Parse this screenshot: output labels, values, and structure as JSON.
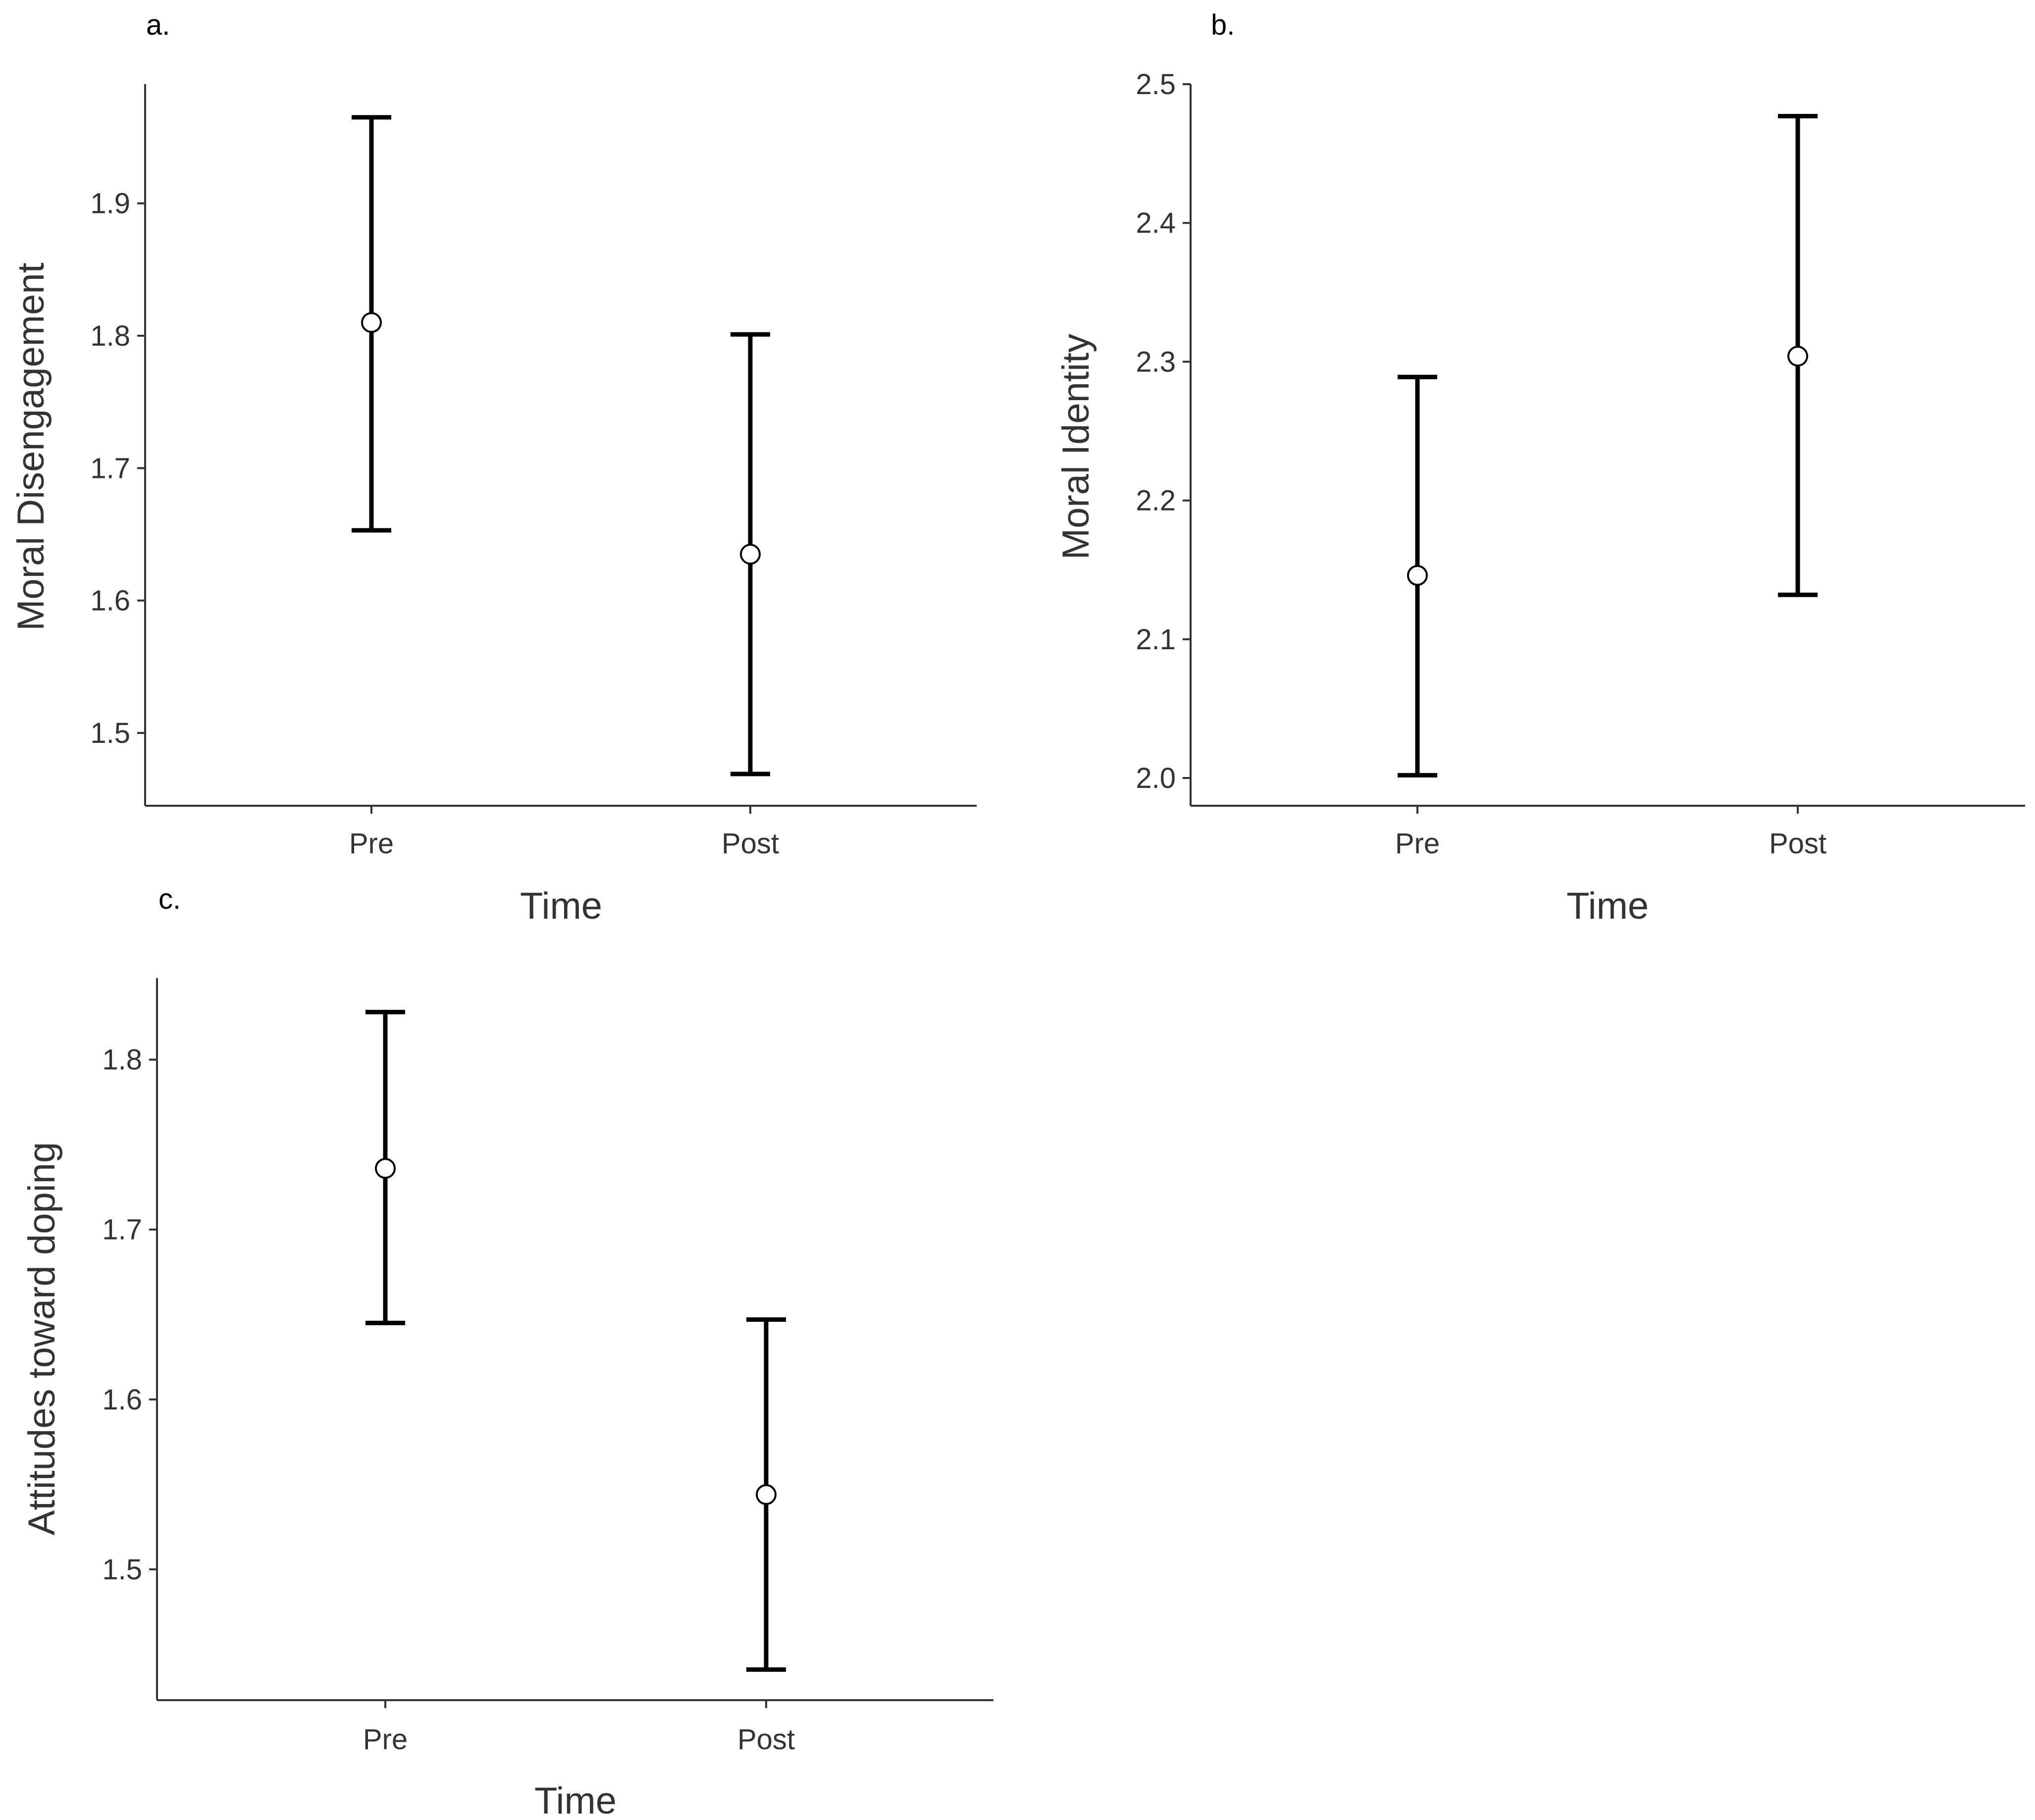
{
  "chart_data": [
    {
      "panel": "a.",
      "type": "scatter",
      "xlabel": "Time",
      "ylabel": "Moral Disengagement",
      "categories": [
        "Pre",
        "Post"
      ],
      "values": [
        1.81,
        1.635
      ],
      "ci_lower": [
        1.653,
        1.469
      ],
      "ci_upper": [
        1.965,
        1.801
      ],
      "ylim": [
        1.445,
        1.99
      ],
      "yticks": [
        1.5,
        1.6,
        1.7,
        1.8,
        1.9
      ],
      "ytick_labels": [
        "1.5",
        "1.6",
        "1.7",
        "1.8",
        "1.9"
      ]
    },
    {
      "panel": "b.",
      "type": "scatter",
      "xlabel": "Time",
      "ylabel": "Moral Identity",
      "categories": [
        "Pre",
        "Post"
      ],
      "values": [
        2.146,
        2.304
      ],
      "ci_lower": [
        2.002,
        2.132
      ],
      "ci_upper": [
        2.289,
        2.477
      ],
      "ylim": [
        1.98,
        2.5
      ],
      "yticks": [
        2.0,
        2.1,
        2.2,
        2.3,
        2.4,
        2.5
      ],
      "ytick_labels": [
        "2.0",
        "2.1",
        "2.2",
        "2.3",
        "2.4",
        "2.5"
      ]
    },
    {
      "panel": "c.",
      "type": "scatter",
      "xlabel": "Time",
      "ylabel": "Attitudes toward doping",
      "categories": [
        "Pre",
        "Post"
      ],
      "values": [
        1.736,
        1.544
      ],
      "ci_lower": [
        1.645,
        1.441
      ],
      "ci_upper": [
        1.828,
        1.647
      ],
      "ylim": [
        1.423,
        1.848
      ],
      "yticks": [
        1.5,
        1.6,
        1.7,
        1.8
      ],
      "ytick_labels": [
        "1.5",
        "1.6",
        "1.7",
        "1.8"
      ]
    }
  ],
  "colors": {
    "axis": "#333333",
    "errorbar": "#000000",
    "point_fill": "#ffffff",
    "point_stroke": "#000000"
  }
}
